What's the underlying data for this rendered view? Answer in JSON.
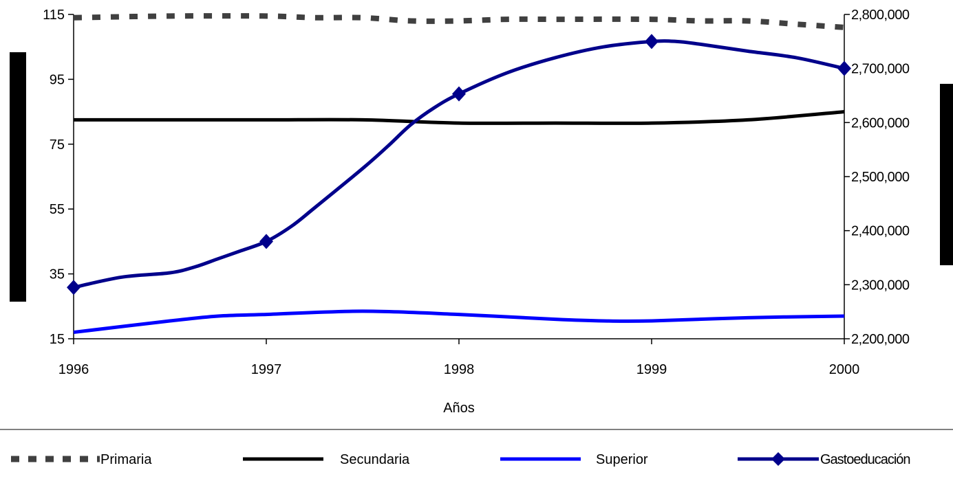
{
  "chart_data": {
    "type": "line",
    "title": "",
    "xlabel": "Años",
    "ylabel_left": "",
    "ylabel_right": "",
    "x": [
      1996,
      1996.25,
      1996.5,
      1996.63,
      1996.75,
      1996.87,
      1997,
      1997.13,
      1997.25,
      1997.5,
      1997.63,
      1997.75,
      1997.87,
      1998,
      1998.25,
      1998.5,
      1998.75,
      1999,
      1999.13,
      1999.25,
      1999.5,
      1999.75,
      2000
    ],
    "xlim": [
      1996,
      2000
    ],
    "xticks": [
      "1996",
      "1997",
      "1998",
      "1999",
      "2000"
    ],
    "ylim_left": [
      15,
      115
    ],
    "yticks_left": [
      "115",
      "95",
      "75",
      "55",
      "35",
      "15"
    ],
    "ylim_right": [
      2200000,
      2800000
    ],
    "yticks_right": [
      "2,800,000",
      "2,700,000",
      "2,600,000",
      "2,500,000",
      "2,400,000",
      "2,300,000",
      "2,200,000"
    ],
    "grid": false,
    "legend_position": "bottom",
    "series": [
      {
        "name": "Primaria",
        "axis": "left",
        "style": "dotted",
        "color": "#404040",
        "x": [
          1996,
          1996.5,
          1997,
          1997.25,
          1997.5,
          1997.75,
          1998,
          1998.25,
          1998.5,
          1999,
          1999.25,
          1999.5,
          1999.75,
          2000
        ],
        "values": [
          114,
          114.5,
          114.5,
          114,
          114,
          113,
          113,
          113.5,
          113.5,
          113.5,
          113,
          113,
          112,
          111
        ]
      },
      {
        "name": "Secundaria",
        "axis": "left",
        "style": "solid",
        "color": "#000000",
        "x": [
          1996,
          1996.5,
          1997,
          1997.5,
          1998,
          1998.5,
          1999,
          1999.5,
          2000
        ],
        "values": [
          82.5,
          82.5,
          82.5,
          82.5,
          81.5,
          81.5,
          81.5,
          82.5,
          85
        ]
      },
      {
        "name": "Superior",
        "axis": "left",
        "style": "solid",
        "color": "#0000ff",
        "x": [
          1996,
          1996.5,
          1996.75,
          1997,
          1997.5,
          1998,
          1998.5,
          1998.75,
          1999,
          1999.5,
          2000
        ],
        "values": [
          17,
          20.5,
          22,
          22.5,
          23.5,
          22.5,
          21,
          20.5,
          20.5,
          21.5,
          22
        ]
      },
      {
        "name": "Gastoeducación",
        "axis": "right",
        "style": "solid-marker",
        "color": "#00008b",
        "x": [
          1996,
          1996.25,
          1996.5,
          1996.63,
          1996.75,
          1996.87,
          1997,
          1997.13,
          1997.25,
          1997.5,
          1997.63,
          1997.75,
          1997.87,
          1998,
          1998.25,
          1998.5,
          1998.75,
          1999,
          1999.13,
          1999.25,
          1999.5,
          1999.75,
          2000
        ],
        "values": [
          2295000,
          2314000,
          2322000,
          2333000,
          2348000,
          2363000,
          2380000,
          2408000,
          2442000,
          2515000,
          2556000,
          2596000,
          2627000,
          2653000,
          2692000,
          2720000,
          2740000,
          2750000,
          2750000,
          2745000,
          2732000,
          2720000,
          2700000
        ],
        "markers_at": [
          1996,
          1997,
          1998,
          1999,
          2000
        ]
      }
    ]
  },
  "colors": {
    "primaria": "#404040",
    "secundaria": "#000000",
    "superior": "#0000ff",
    "gasto": "#00008b"
  }
}
